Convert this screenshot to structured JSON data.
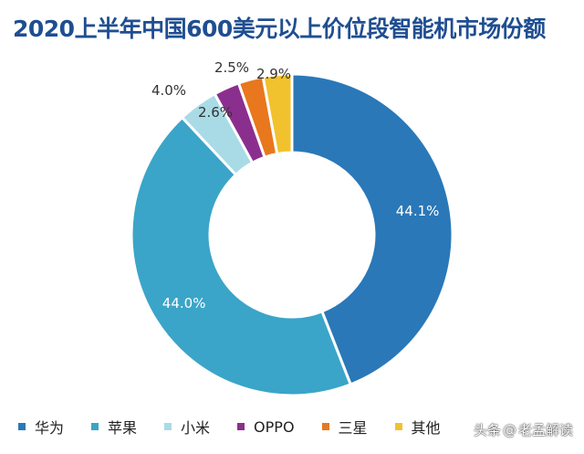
{
  "chart_data": {
    "type": "pie",
    "title": "2020上半年中国600美元以上价位段智能机市场份额",
    "donut": true,
    "categories": [
      "华为",
      "苹果",
      "小米",
      "OPPO",
      "三星",
      "其他"
    ],
    "values": [
      44.1,
      44.0,
      4.0,
      2.6,
      2.5,
      2.9
    ],
    "value_labels": [
      "44.1%",
      "44.0%",
      "4.0%",
      "2.6%",
      "2.5%",
      "2.9%"
    ],
    "colors": [
      "#2a78b8",
      "#3aa5c8",
      "#a9dbe6",
      "#8b2f8e",
      "#e8771e",
      "#f2c12e"
    ],
    "legend_position": "bottom"
  },
  "watermark": {
    "prefix": "头条",
    "at": "@",
    "name": "老孟解读"
  }
}
